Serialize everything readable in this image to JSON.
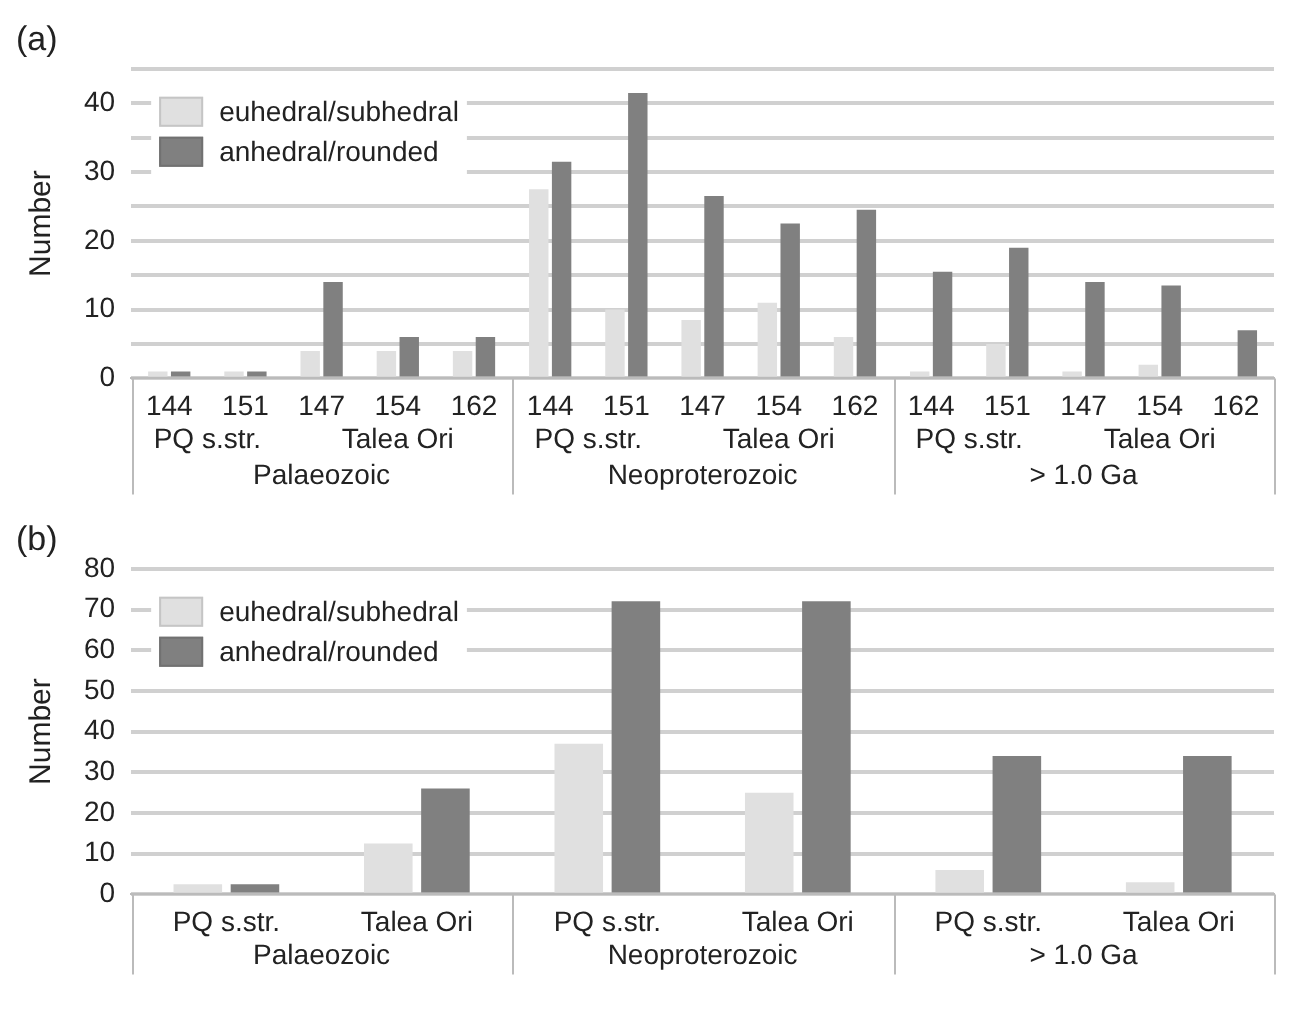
{
  "chart_data": [
    {
      "type": "bar",
      "title": "(a)",
      "ylabel": "Number",
      "categories": [
        "144",
        "151",
        "147",
        "154",
        "162",
        "144",
        "151",
        "147",
        "154",
        "162",
        "144",
        "151",
        "147",
        "154",
        "162"
      ],
      "series": [
        {
          "name": "euhedral/subhedral",
          "color": "#e0e0e0",
          "values": [
            1,
            1,
            4,
            4,
            4,
            27.5,
            10,
            8.5,
            11,
            6,
            1,
            5,
            1,
            2,
            0
          ]
        },
        {
          "name": "anhedral/rounded",
          "color": "#808080",
          "values": [
            1,
            1,
            14,
            6,
            6,
            31.5,
            41.5,
            26.5,
            22.5,
            24.5,
            15.5,
            19,
            14,
            13.5,
            7
          ]
        }
      ],
      "ylim": [
        0,
        45
      ],
      "yticks": [
        0,
        {
          "value": 5,
          "label": null
        },
        10,
        {
          "value": 15,
          "label": null
        },
        20,
        {
          "value": 25,
          "label": null
        },
        30,
        {
          "value": 35,
          "label": null
        },
        40,
        {
          "value": 45,
          "label": null
        }
      ],
      "grid": "y",
      "legend": "top left",
      "annotations": [
        "PQ s.str.",
        "Talea Ori",
        "PQ s.str.",
        "Talea Ori",
        "PQ s.str.",
        "Talea Ori",
        "Palaeozoic",
        "Neoproterozoic",
        "> 1.0 Ga"
      ]
    },
    {
      "type": "bar",
      "title": "(b)",
      "ylabel": "Number",
      "categories": [
        "PQ s.str.",
        "Talea Ori",
        "PQ s.str.",
        "Talea Ori",
        "PQ s.str.",
        "Talea Ori"
      ],
      "series": [
        {
          "name": "euhedral/subhedral",
          "color": "#e0e0e0",
          "values": [
            2.5,
            12.5,
            37,
            25,
            6,
            3
          ]
        },
        {
          "name": "anhedral/rounded",
          "color": "#808080",
          "values": [
            2.5,
            26,
            72,
            72,
            34,
            34
          ]
        }
      ],
      "ylim": [
        0,
        80
      ],
      "yticks": [
        0,
        10,
        20,
        30,
        40,
        50,
        60,
        70,
        80
      ],
      "grid": "y",
      "legend": "top left",
      "annotations": [
        "Palaeozoic",
        "Neoproterozoic",
        "> 1.0 Ga"
      ]
    }
  ]
}
